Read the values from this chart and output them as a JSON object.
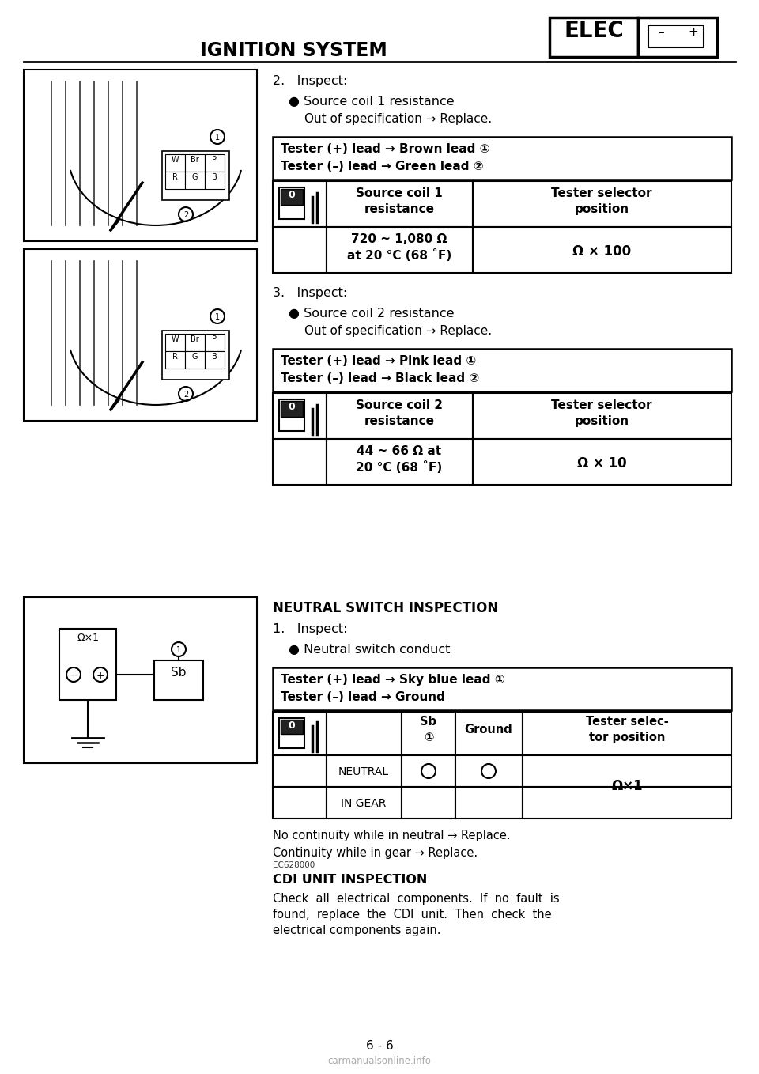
{
  "page_title": "IGNITION SYSTEM",
  "elec_label": "ELEC",
  "page_number": "6 - 6",
  "bg_color": "#ffffff",
  "section2_header": "2.   Inspect:",
  "section2_bullet": "● Source coil 1 resistance",
  "section2_note": "Out of specification → Replace.",
  "tester_box1_line1": "Tester (+) lead → Brown lead ①",
  "tester_box1_line2": "Tester (–) lead → Green lead ②",
  "table1_col1_header": "Source coil 1\nresistance",
  "table1_col2_header": "Tester selector\nposition",
  "table1_col1_val": "720 ~ 1,080 Ω\nat 20 °C (68 ˚F)",
  "table1_col2_val": "Ω × 100",
  "section3_header": "3.   Inspect:",
  "section3_bullet": "● Source coil 2 resistance",
  "section3_note": "Out of specification → Replace.",
  "tester_box2_line1": "Tester (+) lead → Pink lead ①",
  "tester_box2_line2": "Tester (–) lead → Black lead ②",
  "table2_col1_header": "Source coil 2\nresistance",
  "table2_col2_header": "Tester selector\nposition",
  "table2_col1_val": "44 ~ 66 Ω at\n20 °C (68 ˚F)",
  "table2_col2_val": "Ω × 10",
  "neutral_title": "NEUTRAL SWITCH INSPECTION",
  "neutral_step": "1.   Inspect:",
  "neutral_bullet": "● Neutral switch conduct",
  "tester_box3_line1": "Tester (+) lead → Sky blue lead ①",
  "tester_box3_line2": "Tester (–) lead → Ground",
  "table3_col_sb": "Sb\n①",
  "table3_col_ground": "Ground",
  "table3_col_tester": "Tester selec-\ntor position",
  "table3_row1": "NEUTRAL",
  "table3_row2": "IN GEAR",
  "table3_tester_val": "Ω×1",
  "neutral_note1": "No continuity while in neutral → Replace.",
  "neutral_note2": "Continuity while in gear → Replace.",
  "cdi_code": "EC628000",
  "cdi_title": "CDI UNIT INSPECTION",
  "cdi_text1": "Check  all  electrical  components.  If  no  fault  is",
  "cdi_text2": "found,  replace  the  CDI  unit.  Then  check  the",
  "cdi_text3": "electrical components again.",
  "footer_url": "carmanualsonline.info"
}
